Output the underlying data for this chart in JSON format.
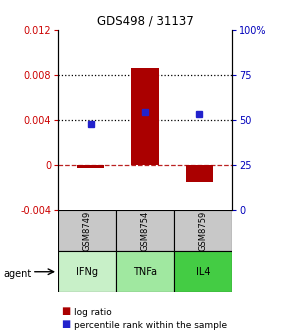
{
  "title": "GDS498 / 31137",
  "samples": [
    "GSM8749",
    "GSM8754",
    "GSM8759"
  ],
  "agents": [
    "IFNg",
    "TNFa",
    "IL4"
  ],
  "log_ratios": [
    -0.0003,
    0.0086,
    -0.0015
  ],
  "percentile_ranks": [
    0.48,
    0.545,
    0.535
  ],
  "ylim_left": [
    -0.004,
    0.012
  ],
  "ylim_right": [
    0.0,
    1.0
  ],
  "yticks_left": [
    -0.004,
    0.0,
    0.004,
    0.008,
    0.012
  ],
  "yticks_right_vals": [
    0.0,
    0.25,
    0.5,
    0.75,
    1.0
  ],
  "yticks_right_labels": [
    "0",
    "25",
    "50",
    "75",
    "100%"
  ],
  "hlines": [
    0.004,
    0.008
  ],
  "bar_color": "#aa0000",
  "dot_color": "#2222cc",
  "sample_box_color": "#c8c8c8",
  "agent_box_colors": [
    "#c8f0c8",
    "#a0e8a0",
    "#44cc44"
  ],
  "left_tick_color": "#cc0000",
  "right_tick_color": "#0000bb",
  "zero_line_color": "#bb2222"
}
